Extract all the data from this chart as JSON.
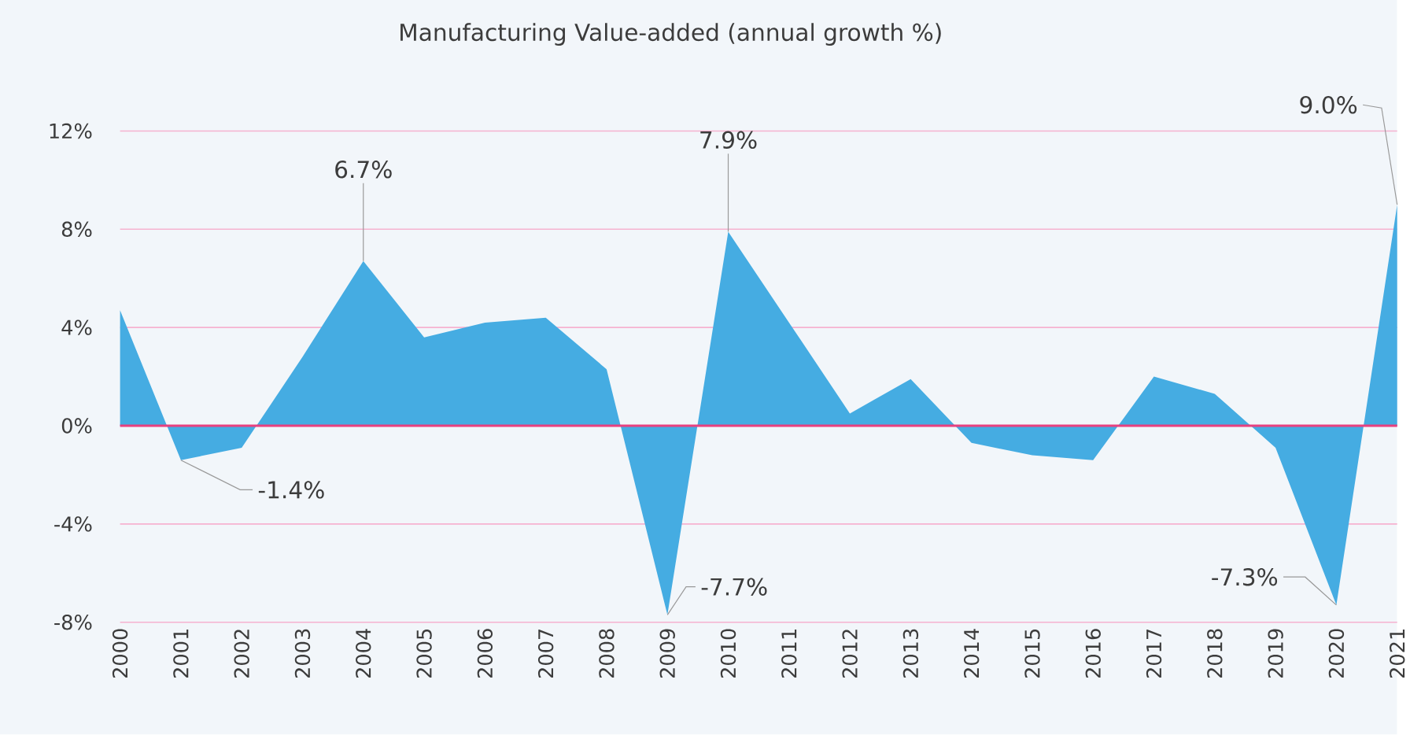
{
  "chart_data": {
    "type": "area",
    "title": "Manufacturing Value-added (annual growth %)",
    "x": [
      2000,
      2001,
      2002,
      2003,
      2004,
      2005,
      2006,
      2007,
      2008,
      2009,
      2010,
      2011,
      2012,
      2013,
      2014,
      2015,
      2016,
      2017,
      2018,
      2019,
      2020,
      2021
    ],
    "series": [
      {
        "color": "#45ace2",
        "values": [
          4.7,
          -1.4,
          -0.9,
          2.8,
          6.7,
          3.6,
          4.2,
          4.4,
          2.3,
          -7.7,
          7.9,
          4.2,
          0.5,
          1.9,
          -0.7,
          -1.2,
          -1.4,
          2.0,
          1.3,
          -0.9,
          -7.3,
          9.0
        ]
      }
    ],
    "xlim": [
      2000,
      2021
    ],
    "xticks": [
      2000,
      2001,
      2002,
      2003,
      2004,
      2005,
      2006,
      2007,
      2008,
      2009,
      2010,
      2011,
      2012,
      2013,
      2014,
      2015,
      2016,
      2017,
      2018,
      2019,
      2020,
      2021
    ],
    "ylim": [
      -8,
      12
    ],
    "yticks": [
      {
        "value": -8,
        "label": "-8%"
      },
      {
        "value": -4,
        "label": "-4%"
      },
      {
        "value": 0,
        "label": "0%"
      },
      {
        "value": 4,
        "label": "4%"
      },
      {
        "value": 8,
        "label": "8%"
      },
      {
        "value": 12,
        "label": "12%"
      }
    ],
    "grid": "y",
    "ref_lines": [
      {
        "axis": "y",
        "value": 0,
        "color": "#e8407f"
      }
    ],
    "annotations": [
      {
        "text": "6.7%",
        "x": 2004,
        "y": 6.7
      },
      {
        "text": "-1.4%",
        "x": 2001,
        "y": -1.4
      },
      {
        "text": "7.9%",
        "x": 2010,
        "y": 7.9
      },
      {
        "text": "-7.7%",
        "x": 2009,
        "y": -7.7
      },
      {
        "text": "-7.3%",
        "x": 2020,
        "y": -7.3
      },
      {
        "text": "9.0%",
        "x": 2021,
        "y": 9.0
      }
    ]
  }
}
